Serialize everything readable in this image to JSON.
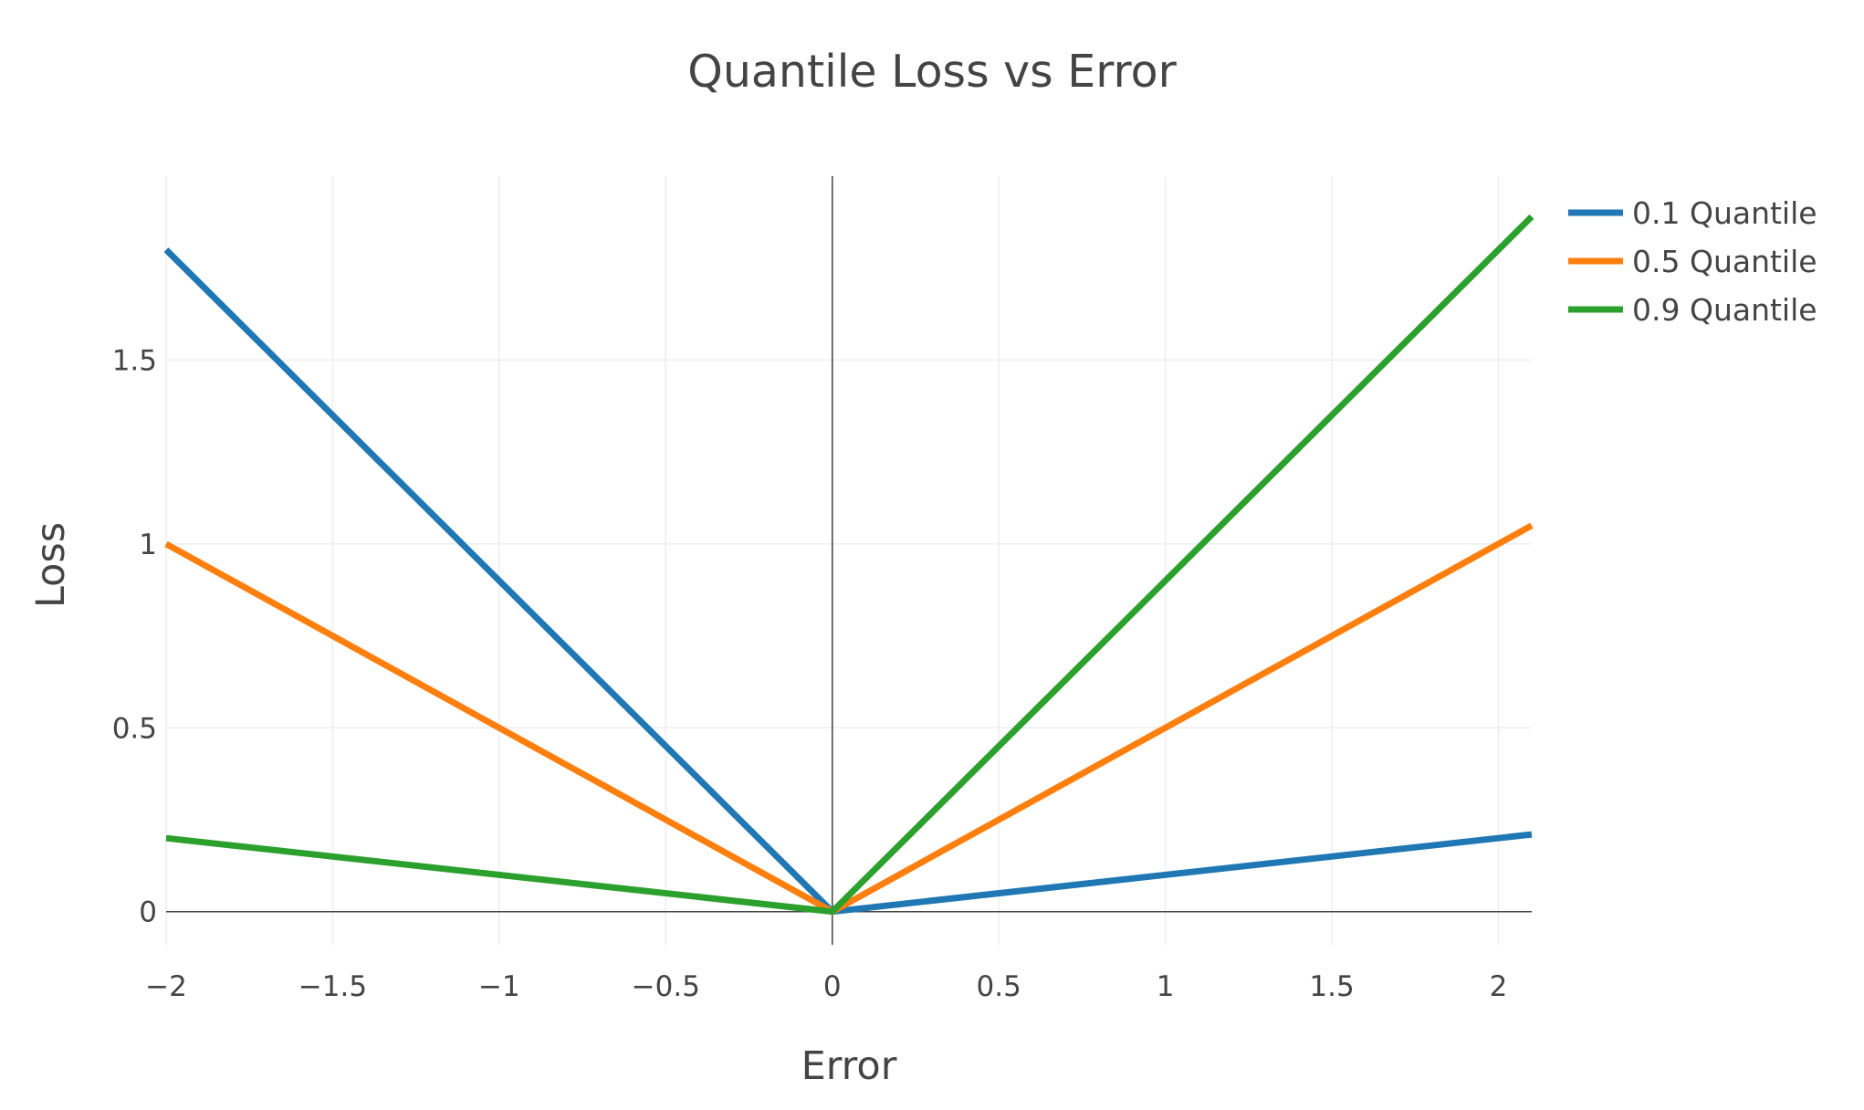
{
  "chart_data": {
    "type": "line",
    "title": "Quantile Loss vs Error",
    "xlabel": "Error",
    "ylabel": "Loss",
    "xlim": [
      -2,
      2.1
    ],
    "ylim": [
      -0.09,
      2.0
    ],
    "x_ticks": [
      -2,
      -1.5,
      -1,
      -0.5,
      0,
      0.5,
      1,
      1.5,
      2
    ],
    "x_tick_labels": [
      "−2",
      "−1.5",
      "−1",
      "−0.5",
      "0",
      "0.5",
      "1",
      "1.5",
      "2"
    ],
    "y_ticks": [
      0,
      0.5,
      1,
      1.5
    ],
    "y_tick_labels": [
      "0",
      "0.5",
      "1",
      "1.5"
    ],
    "grid": true,
    "legend_position": "top-right",
    "series": [
      {
        "name": "0.1 Quantile",
        "color": "#1f77b4",
        "x": [
          -2,
          0,
          2.1
        ],
        "y": [
          1.8,
          0,
          0.21
        ]
      },
      {
        "name": "0.5 Quantile",
        "color": "#ff7f0e",
        "x": [
          -2,
          0,
          2.1
        ],
        "y": [
          1.0,
          0,
          1.05
        ]
      },
      {
        "name": "0.9 Quantile",
        "color": "#2ca02c",
        "x": [
          -2,
          0,
          2.1
        ],
        "y": [
          0.2,
          0,
          1.89
        ]
      }
    ]
  }
}
